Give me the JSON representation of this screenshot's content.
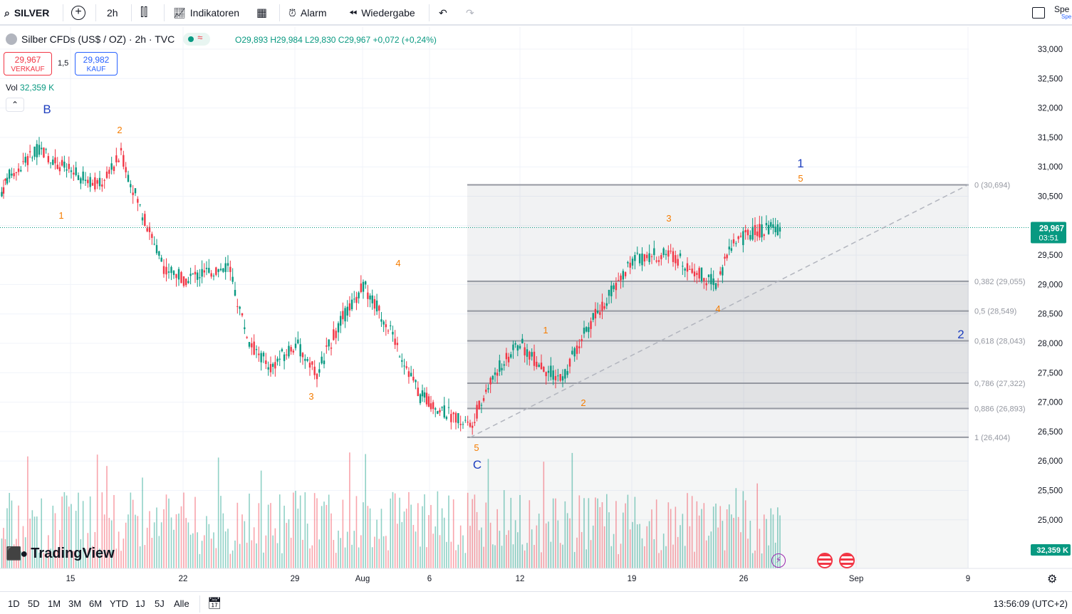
{
  "toolbar": {
    "symbol": "SILVER",
    "interval": "2h",
    "indicators": "Indikatoren",
    "alert": "Alarm",
    "replay": "Wiedergabe",
    "right_label": "Spe",
    "right_sub": "Spe"
  },
  "legend": {
    "title": "Silber CFDs (US$ / OZ) · 2h · TVC",
    "ohlc": "O29,893 H29,984 L29,830 C29,967 +0,072 (+0,24%)",
    "sell_price": "29,967",
    "sell_label": "VERKAUF",
    "spread": "1,5",
    "buy_price": "29,982",
    "buy_label": "KAUF",
    "vol_label": "Vol",
    "vol_value": "32,359 K"
  },
  "price_axis": {
    "ticks": [
      "33,000",
      "32,500",
      "32,000",
      "31,500",
      "31,000",
      "30,500",
      "30,000",
      "29,500",
      "29,000",
      "28,500",
      "28,000",
      "27,500",
      "27,000",
      "26,500",
      "26,000",
      "25,500",
      "25,000"
    ],
    "current_price": "29,967",
    "countdown": "03:51",
    "volume_tag": "32,359 K"
  },
  "time_axis": {
    "labels": [
      "15",
      "22",
      "29",
      "Aug",
      "6",
      "12",
      "19",
      "26",
      "Sep",
      "9"
    ]
  },
  "fib": {
    "levels": [
      {
        "ratio": 0,
        "label": "0 (30,694)",
        "price": 30.694
      },
      {
        "ratio": 0.382,
        "label": "0,382 (29,055)",
        "price": 29.055
      },
      {
        "ratio": 0.5,
        "label": "0,5 (28,549)",
        "price": 28.549
      },
      {
        "ratio": 0.618,
        "label": "0,618 (28,043)",
        "price": 28.043
      },
      {
        "ratio": 0.786,
        "label": "0,786 (27,322)",
        "price": 27.322
      },
      {
        "ratio": 0.886,
        "label": "0,886 (26,893)",
        "price": 26.893
      },
      {
        "ratio": 1,
        "label": "1 (26,404)",
        "price": 26.404
      }
    ]
  },
  "wave_labels": {
    "major": [
      "B",
      "C",
      "1",
      "2"
    ],
    "minor": [
      "1",
      "2",
      "3",
      "4",
      "5",
      "1",
      "2",
      "3",
      "4",
      "5"
    ]
  },
  "bottom": {
    "ranges": [
      "1D",
      "5D",
      "1M",
      "3M",
      "6M",
      "YTD",
      "1J",
      "5J",
      "Alle"
    ],
    "clock": "13:56:09 (UTC+2)"
  },
  "brand": {
    "logo_text": "TradingView"
  },
  "colors": {
    "up": "#089981",
    "down": "#f23645",
    "wave_major": "#1e3fbf",
    "wave_minor": "#f57c00",
    "fib_line": "#9598a1"
  },
  "chart_data": {
    "type": "candlestick",
    "symbol": "Silber CFDs (US$ / OZ)",
    "timeframe": "2h",
    "ylim": [
      24.6,
      33.3
    ],
    "last_close": 29.967,
    "daily_closes": [
      {
        "x": "Jul 11",
        "y": 30.8
      },
      {
        "x": "Jul 12",
        "y": 31.3
      },
      {
        "x": "Jul 15",
        "y": 30.9
      },
      {
        "x": "Jul 16",
        "y": 30.7
      },
      {
        "x": "Jul 17",
        "y": 31.2
      },
      {
        "x": "Jul 18",
        "y": 30.2
      },
      {
        "x": "Jul 19",
        "y": 29.3
      },
      {
        "x": "Jul 22",
        "y": 29.1
      },
      {
        "x": "Jul 23",
        "y": 29.2
      },
      {
        "x": "Jul 24",
        "y": 29.3
      },
      {
        "x": "Jul 25",
        "y": 28.0
      },
      {
        "x": "Jul 26",
        "y": 27.6
      },
      {
        "x": "Jul 29",
        "y": 28.0
      },
      {
        "x": "Jul 30",
        "y": 27.5
      },
      {
        "x": "Jul 31",
        "y": 28.3
      },
      {
        "x": "Aug 1",
        "y": 29.0
      },
      {
        "x": "Aug 2",
        "y": 28.3
      },
      {
        "x": "Aug 5",
        "y": 27.1
      },
      {
        "x": "Aug 6",
        "y": 27.0
      },
      {
        "x": "Aug 7",
        "y": 26.8
      },
      {
        "x": "Aug 8",
        "y": 26.6
      },
      {
        "x": "Aug 9",
        "y": 27.5
      },
      {
        "x": "Aug 12",
        "y": 28.0
      },
      {
        "x": "Aug 13",
        "y": 27.6
      },
      {
        "x": "Aug 14",
        "y": 27.4
      },
      {
        "x": "Aug 15",
        "y": 28.2
      },
      {
        "x": "Aug 16",
        "y": 28.8
      },
      {
        "x": "Aug 19",
        "y": 29.4
      },
      {
        "x": "Aug 20",
        "y": 29.5
      },
      {
        "x": "Aug 21",
        "y": 29.5
      },
      {
        "x": "Aug 22",
        "y": 29.0
      },
      {
        "x": "Aug 23",
        "y": 29.7
      },
      {
        "x": "Aug 26",
        "y": 29.9
      },
      {
        "x": "Aug 27",
        "y": 29.967
      }
    ],
    "trendline": [
      {
        "x": "Aug 8",
        "y": 26.4
      },
      {
        "x": "Sep 9",
        "y": 30.7
      }
    ]
  }
}
